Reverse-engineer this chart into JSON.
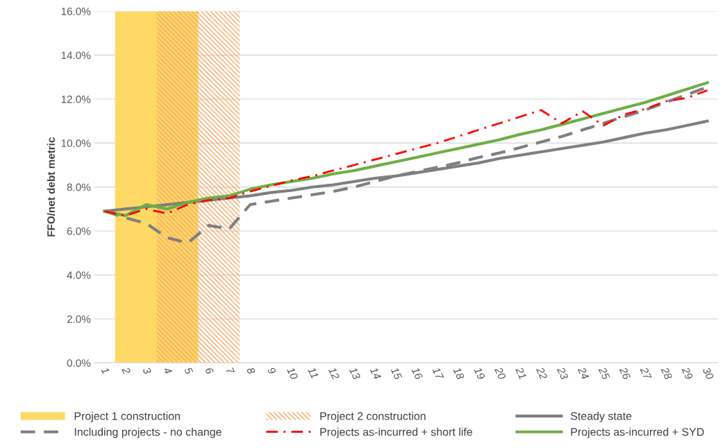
{
  "chart_data": {
    "type": "line",
    "categories": [
      "1",
      "2",
      "3",
      "4",
      "5",
      "6",
      "7",
      "8",
      "9",
      "10",
      "11",
      "12",
      "13",
      "14",
      "15",
      "16",
      "17",
      "18",
      "19",
      "20",
      "21",
      "22",
      "23",
      "24",
      "25",
      "26",
      "27",
      "28",
      "29",
      "30"
    ],
    "ylabel": "FFO/net debt metric",
    "ylim": [
      0,
      16
    ],
    "yticks": [
      {
        "value": 0,
        "label": "0.0%"
      },
      {
        "value": 2,
        "label": "2.0%"
      },
      {
        "value": 4,
        "label": "4.0%"
      },
      {
        "value": 6,
        "label": "6.0%"
      },
      {
        "value": 8,
        "label": "8.0%"
      },
      {
        "value": 10,
        "label": "10.0%"
      },
      {
        "value": 12,
        "label": "12.0%"
      },
      {
        "value": 14,
        "label": "14.0%"
      },
      {
        "value": 16,
        "label": "16.0%"
      }
    ],
    "grid": "y",
    "legend": "bottom",
    "bands": [
      {
        "axis": "x",
        "from": "2",
        "to": "5",
        "label": "Project 1 construction",
        "color": "#ffd966"
      },
      {
        "axis": "x",
        "from": "4",
        "to": "7",
        "label": "Project 2 construction",
        "color": "#f4a460"
      }
    ],
    "series": [
      {
        "name": "Steady state",
        "color": "#7f7f7f",
        "line_style": "solid",
        "values": [
          6.9,
          7.0,
          7.1,
          7.2,
          7.3,
          7.4,
          7.5,
          7.6,
          7.75,
          7.85,
          8.0,
          8.1,
          8.25,
          8.4,
          8.5,
          8.65,
          8.8,
          8.95,
          9.1,
          9.3,
          9.45,
          9.6,
          9.75,
          9.9,
          10.05,
          10.25,
          10.45,
          10.6,
          10.8,
          11.0
        ]
      },
      {
        "name": "Including projects - no change",
        "color": "#7f7f7f",
        "line_style": "dashed",
        "values": [
          6.9,
          6.6,
          6.35,
          5.7,
          5.45,
          6.25,
          6.1,
          7.2,
          7.35,
          7.5,
          7.65,
          7.8,
          8.0,
          8.25,
          8.5,
          8.7,
          8.9,
          9.1,
          9.35,
          9.55,
          9.8,
          10.05,
          10.3,
          10.6,
          10.9,
          11.2,
          11.5,
          11.85,
          12.2,
          12.55
        ]
      },
      {
        "name": "Projects as-incurred + short life",
        "color": "#ff0000",
        "line_style": "dashdot",
        "values": [
          6.9,
          6.7,
          7.0,
          6.8,
          7.2,
          7.4,
          7.5,
          7.8,
          8.05,
          8.3,
          8.5,
          8.75,
          9.0,
          9.25,
          9.5,
          9.75,
          10.0,
          10.3,
          10.6,
          10.9,
          11.2,
          11.5,
          10.9,
          11.45,
          10.8,
          11.3,
          11.55,
          11.9,
          12.05,
          12.4
        ]
      },
      {
        "name": "Projects as-incurred + SYD",
        "color": "#70ad47",
        "line_style": "solid",
        "values": [
          6.9,
          6.7,
          7.2,
          7.0,
          7.3,
          7.5,
          7.6,
          7.9,
          8.1,
          8.25,
          8.4,
          8.6,
          8.75,
          8.95,
          9.15,
          9.35,
          9.55,
          9.75,
          9.95,
          10.15,
          10.4,
          10.6,
          10.85,
          11.1,
          11.35,
          11.6,
          11.85,
          12.15,
          12.45,
          12.75
        ]
      }
    ]
  }
}
